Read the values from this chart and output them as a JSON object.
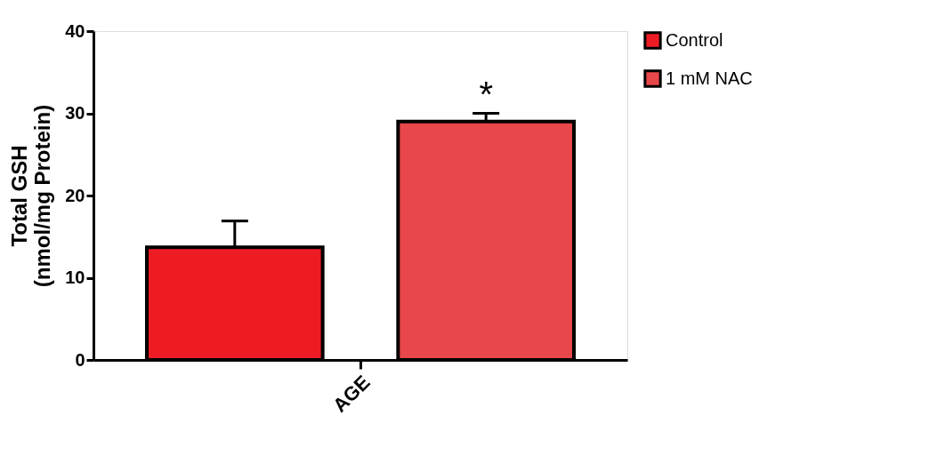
{
  "chart_data": {
    "type": "bar",
    "ylabel": "Total  GSH\n(nmol/mg Protein)",
    "categories": [
      "AGE"
    ],
    "series": [
      {
        "name": "Control",
        "color": "#ed1c24",
        "values": [
          13.7
        ],
        "errors": [
          [
            13.7,
            16.9
          ]
        ]
      },
      {
        "name": "1 mM NAC",
        "color": "#e8474b",
        "values": [
          29.0
        ],
        "errors": [
          [
            29.0,
            30.0
          ]
        ]
      }
    ],
    "annotations": [
      "*"
    ],
    "ylim": [
      0,
      40
    ],
    "yticks": [
      0,
      10,
      20,
      30,
      40
    ],
    "grid": false,
    "legend": "top right"
  }
}
